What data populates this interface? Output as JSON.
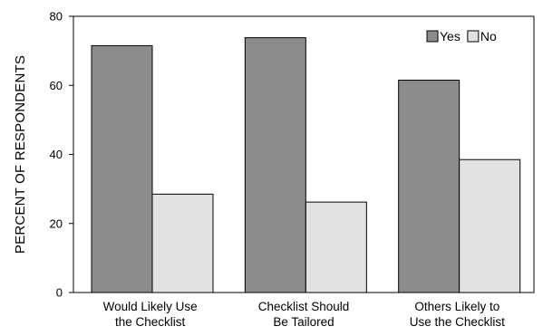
{
  "chart_data": {
    "type": "bar",
    "categories": [
      [
        "Would Likely Use",
        "the Checklist"
      ],
      [
        "Checklist Should",
        "Be Tailored"
      ],
      [
        "Others Likely to",
        "Use the Checklist"
      ]
    ],
    "series": [
      {
        "name": "Yes",
        "values": [
          71.5,
          73.8,
          61.5
        ],
        "color": "#8c8c8e"
      },
      {
        "name": "No",
        "values": [
          28.5,
          26.2,
          38.5
        ],
        "color": "#e2e2e2"
      }
    ],
    "xlabel": "",
    "ylabel": "PERCENT OF RESPONDENTS",
    "ylim": [
      0,
      80
    ],
    "yticks": [
      0,
      20,
      40,
      60,
      80
    ],
    "grid": false,
    "legend_position": "top-right"
  }
}
